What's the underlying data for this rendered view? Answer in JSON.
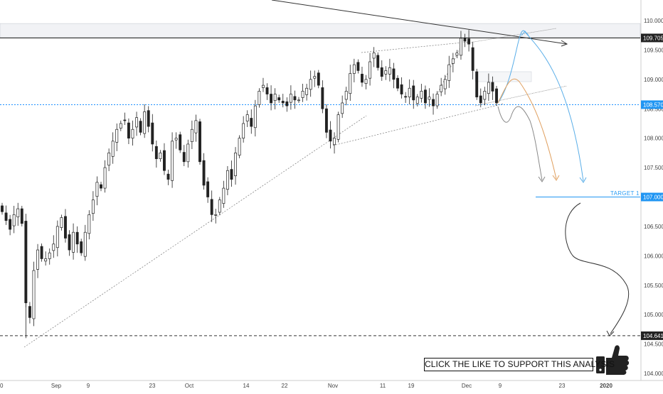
{
  "chart_data": {
    "type": "candlestick",
    "symbol_context": "daily price chart",
    "y_axis": {
      "ticks": [
        "110.000",
        "109.500",
        "109.000",
        "108.500",
        "108.000",
        "107.500",
        "107.000",
        "106.500",
        "106.000",
        "105.500",
        "105.000",
        "104.500",
        "104.000"
      ],
      "range": [
        103.9,
        110.4
      ],
      "position": "right"
    },
    "x_axis": {
      "ticks": [
        "0",
        "Sep",
        "9",
        "23",
        "Oct",
        "14",
        "22",
        "Nov",
        "11",
        "19",
        "Dec",
        "9",
        "23",
        "2020"
      ]
    },
    "price_levels": [
      {
        "value": 109.705,
        "label": "109.705",
        "style": "solid",
        "color": "#111111"
      },
      {
        "value": 108.57,
        "label": "108.570",
        "style": "dotted",
        "color": "#1e90ff"
      },
      {
        "value": 107.0,
        "label": "107.000",
        "style": "solid",
        "color": "#2196f3"
      },
      {
        "value": 104.641,
        "label": "104.641",
        "style": "dashed",
        "color": "#333333"
      }
    ],
    "annotations": {
      "target_label": "TARGET 1",
      "cta_text": "CLICK THE LIKE TO SUPPORT THIS ANALYSIS"
    },
    "resistance_zone": [
      109.705,
      109.95
    ],
    "approx_close_series": [
      106.75,
      106.6,
      106.45,
      106.7,
      106.8,
      106.55,
      105.2,
      104.95,
      105.75,
      106.1,
      105.95,
      105.95,
      106.05,
      106.2,
      106.5,
      106.65,
      106.3,
      106.1,
      106.4,
      106.2,
      106.05,
      106.4,
      106.7,
      106.95,
      107.25,
      107.15,
      107.5,
      107.75,
      107.95,
      108.15,
      108.25,
      108.3,
      108.0,
      108.15,
      108.35,
      108.1,
      108.45,
      108.2,
      107.9,
      107.65,
      107.75,
      107.45,
      107.3,
      107.95,
      108.0,
      107.8,
      107.6,
      107.9,
      108.15,
      108.3,
      107.6,
      107.2,
      107.0,
      106.7,
      106.7,
      106.95,
      107.15,
      107.45,
      107.3,
      107.75,
      108.0,
      108.25,
      108.4,
      108.2,
      108.55,
      108.8,
      108.9,
      108.75,
      108.6,
      108.75,
      108.65,
      108.6,
      108.55,
      108.75,
      108.65,
      108.65,
      108.8,
      108.85,
      109.0,
      109.05,
      108.9,
      108.5,
      108.1,
      107.95,
      108.0,
      108.4,
      108.6,
      108.8,
      109.1,
      109.25,
      109.15,
      108.95,
      109.0,
      109.3,
      109.45,
      109.2,
      109.05,
      109.15,
      109.2,
      109.0,
      108.85,
      108.75,
      108.7,
      108.85,
      108.65,
      108.7,
      108.8,
      108.6,
      108.7,
      108.55,
      108.75,
      108.9,
      109.0,
      109.25,
      109.35,
      109.45,
      109.7,
      109.65,
      109.6,
      109.15,
      108.7,
      108.6,
      108.8,
      108.95,
      108.8,
      108.6
    ]
  }
}
